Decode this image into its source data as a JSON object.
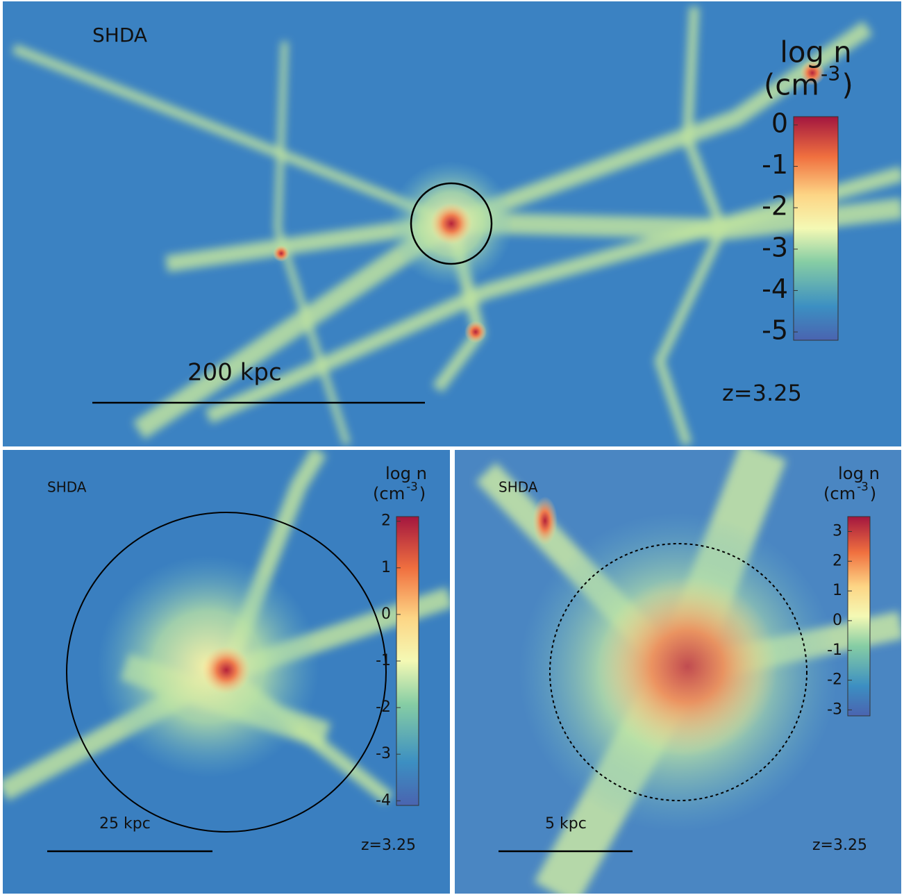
{
  "panels": [
    {
      "label": "SHDA",
      "colorbar": {
        "title": "log n",
        "unit": [
          "(cm",
          "-3",
          ")"
        ],
        "lim": [
          -5.2,
          0.2
        ],
        "ticks": [
          0,
          -1,
          -2,
          -3,
          -4,
          -5
        ]
      },
      "scale_bar": "200 kpc",
      "redshift": "z=3.25"
    },
    {
      "label": "SHDA",
      "colorbar": {
        "title": "log n",
        "unit": [
          "(cm",
          "-3",
          ")"
        ],
        "lim": [
          -4.1,
          2.1
        ],
        "ticks": [
          2,
          1,
          0,
          -1,
          -2,
          -3,
          -4
        ]
      },
      "scale_bar": "25 kpc",
      "redshift": "z=3.25"
    },
    {
      "label": "SHDA",
      "colorbar": {
        "title": "log n",
        "unit": [
          "(cm",
          "-3",
          ")"
        ],
        "lim": [
          -3.2,
          3.5
        ],
        "ticks": [
          3,
          2,
          1,
          0,
          -1,
          -2,
          -3
        ]
      },
      "scale_bar": "5 kpc",
      "redshift": "z=3.25"
    }
  ]
}
